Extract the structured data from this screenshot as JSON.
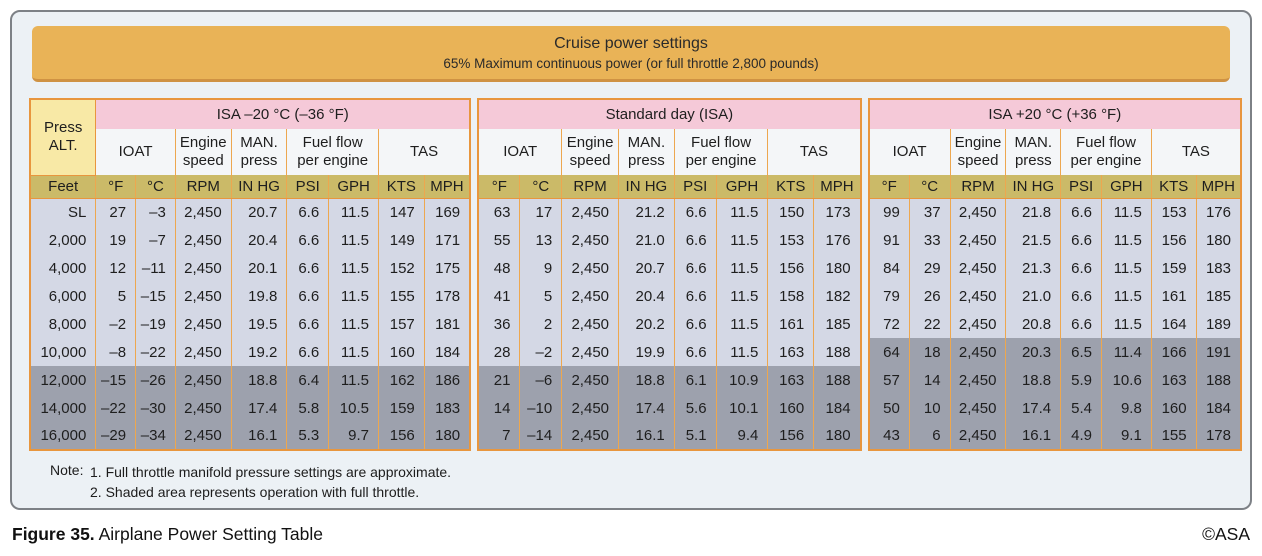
{
  "title_bar": {
    "title": "Cruise power settings",
    "subtitle": "65% Maximum continuous power (or full throttle 2,800 pounds)"
  },
  "left_column": {
    "header": "Press\nALT.",
    "unit": "Feet",
    "values": [
      "SL",
      "2,000",
      "4,000",
      "6,000",
      "8,000",
      "10,000",
      "12,000",
      "14,000",
      "16,000"
    ]
  },
  "column_groups": [
    {
      "label": "IOAT",
      "span": 2
    },
    {
      "label": "Engine\nspeed",
      "span": 1
    },
    {
      "label": "MAN.\npress",
      "span": 1
    },
    {
      "label": "Fuel flow\nper engine",
      "span": 2
    },
    {
      "label": "TAS",
      "span": 2
    }
  ],
  "units": [
    "°F",
    "°C",
    "RPM",
    "IN HG",
    "PSI",
    "GPH",
    "KTS",
    "MPH"
  ],
  "sections": [
    {
      "id": "isa-minus-20",
      "title": "ISA –20 °C (–36 °F)",
      "full_throttle_from_row": 6,
      "rows": [
        [
          "27",
          "–3",
          "2,450",
          "20.7",
          "6.6",
          "11.5",
          "147",
          "169"
        ],
        [
          "19",
          "–7",
          "2,450",
          "20.4",
          "6.6",
          "11.5",
          "149",
          "171"
        ],
        [
          "12",
          "–11",
          "2,450",
          "20.1",
          "6.6",
          "11.5",
          "152",
          "175"
        ],
        [
          "5",
          "–15",
          "2,450",
          "19.8",
          "6.6",
          "11.5",
          "155",
          "178"
        ],
        [
          "–2",
          "–19",
          "2,450",
          "19.5",
          "6.6",
          "11.5",
          "157",
          "181"
        ],
        [
          "–8",
          "–22",
          "2,450",
          "19.2",
          "6.6",
          "11.5",
          "160",
          "184"
        ],
        [
          "–15",
          "–26",
          "2,450",
          "18.8",
          "6.4",
          "11.5",
          "162",
          "186"
        ],
        [
          "–22",
          "–30",
          "2,450",
          "17.4",
          "5.8",
          "10.5",
          "159",
          "183"
        ],
        [
          "–29",
          "–34",
          "2,450",
          "16.1",
          "5.3",
          "9.7",
          "156",
          "180"
        ]
      ]
    },
    {
      "id": "standard-day",
      "title": "Standard day (ISA)",
      "full_throttle_from_row": 6,
      "rows": [
        [
          "63",
          "17",
          "2,450",
          "21.2",
          "6.6",
          "11.5",
          "150",
          "173"
        ],
        [
          "55",
          "13",
          "2,450",
          "21.0",
          "6.6",
          "11.5",
          "153",
          "176"
        ],
        [
          "48",
          "9",
          "2,450",
          "20.7",
          "6.6",
          "11.5",
          "156",
          "180"
        ],
        [
          "41",
          "5",
          "2,450",
          "20.4",
          "6.6",
          "11.5",
          "158",
          "182"
        ],
        [
          "36",
          "2",
          "2,450",
          "20.2",
          "6.6",
          "11.5",
          "161",
          "185"
        ],
        [
          "28",
          "–2",
          "2,450",
          "19.9",
          "6.6",
          "11.5",
          "163",
          "188"
        ],
        [
          "21",
          "–6",
          "2,450",
          "18.8",
          "6.1",
          "10.9",
          "163",
          "188"
        ],
        [
          "14",
          "–10",
          "2,450",
          "17.4",
          "5.6",
          "10.1",
          "160",
          "184"
        ],
        [
          "7",
          "–14",
          "2,450",
          "16.1",
          "5.1",
          "9.4",
          "156",
          "180"
        ]
      ]
    },
    {
      "id": "isa-plus-20",
      "title": "ISA +20 °C (+36 °F)",
      "full_throttle_from_row": 5,
      "rows": [
        [
          "99",
          "37",
          "2,450",
          "21.8",
          "6.6",
          "11.5",
          "153",
          "176"
        ],
        [
          "91",
          "33",
          "2,450",
          "21.5",
          "6.6",
          "11.5",
          "156",
          "180"
        ],
        [
          "84",
          "29",
          "2,450",
          "21.3",
          "6.6",
          "11.5",
          "159",
          "183"
        ],
        [
          "79",
          "26",
          "2,450",
          "21.0",
          "6.6",
          "11.5",
          "161",
          "185"
        ],
        [
          "72",
          "22",
          "2,450",
          "20.8",
          "6.6",
          "11.5",
          "164",
          "189"
        ],
        [
          "64",
          "18",
          "2,450",
          "20.3",
          "6.5",
          "11.4",
          "166",
          "191"
        ],
        [
          "57",
          "14",
          "2,450",
          "18.8",
          "5.9",
          "10.6",
          "163",
          "188"
        ],
        [
          "50",
          "10",
          "2,450",
          "17.4",
          "5.4",
          "9.8",
          "160",
          "184"
        ],
        [
          "43",
          "6",
          "2,450",
          "16.1",
          "4.9",
          "9.1",
          "155",
          "178"
        ]
      ]
    }
  ],
  "note": {
    "label": "Note:",
    "lines": [
      "1. Full throttle manifold pressure settings are approximate.",
      "2. Shaded area represents operation with full throttle."
    ]
  },
  "caption": {
    "figure_label": "Figure 35.",
    "text": "Airplane Power Setting Table",
    "credit": "©ASA"
  },
  "colors": {
    "title_bar": "#e9b357",
    "section_header_pink": "#f5c9d8",
    "unit_row_khaki": "#cbba68",
    "press_alt_yellow": "#f8e9a6",
    "table_border_orange": "#e8963e",
    "row_light": "#d4d8e5",
    "row_full_throttle": "#9da1ad",
    "panel_bg": "#ecf1f5"
  }
}
